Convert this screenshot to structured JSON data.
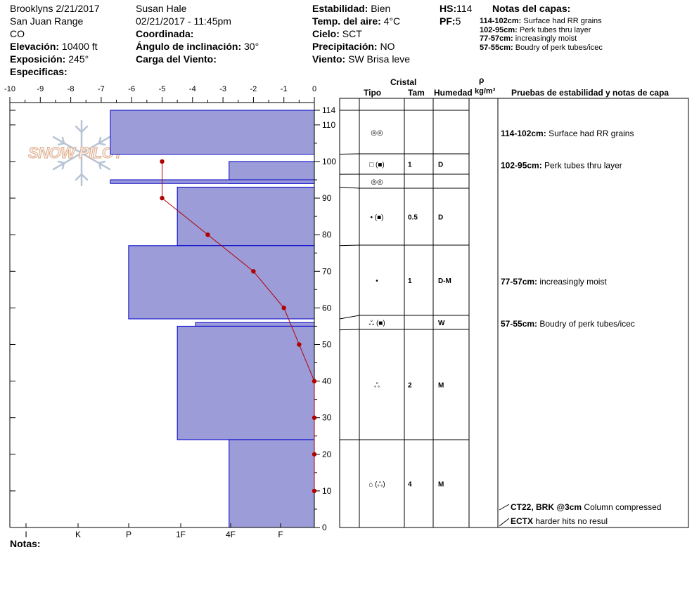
{
  "header": {
    "site_date": "Brooklyns 2/21/2017",
    "range": "San Juan Range",
    "state": "CO",
    "elevation_label": "Elevación:",
    "elevation_value": "10400 ft",
    "aspect_label": "Exposición:",
    "aspect_value": "245°",
    "specifics_label": "Especificas:",
    "observer": "Susan Hale",
    "datetime": "02/21/2017 - 11:45pm",
    "coord_label": "Coordinada:",
    "coord_value": "",
    "slope_label": "Ángulo de inclinación:",
    "slope_value": "30°",
    "windload_label": "Carga del Viento:",
    "windload_value": "",
    "stability_label": "Estabilidad:",
    "stability_value": "Bien",
    "airtemp_label": "Temp. del aire:",
    "airtemp_value": "4°C",
    "sky_label": "Cielo:",
    "sky_value": "SCT",
    "precip_label": "Precipitación:",
    "precip_value": "NO",
    "wind_label": "Viento:",
    "wind_value": "SW Brisa leve",
    "hs_label": "HS:",
    "hs_value": "114",
    "pf_label": "PF:",
    "pf_value": "5",
    "notes_title": "Notas del capas:",
    "layer_notes": [
      {
        "range": "114-102cm:",
        "text": "Surface had RR grains"
      },
      {
        "range": "102-95cm:",
        "text": "Perk tubes thru layer"
      },
      {
        "range": "77-57cm:",
        "text": "increasingly moist"
      },
      {
        "range": "57-55cm:",
        "text": "Boudry of perk tubes/icec"
      }
    ]
  },
  "watermark": "SNOW PILOT",
  "footer_notes_label": "Notas:",
  "table": {
    "headers": {
      "crystal": "Cristal",
      "type": "Tipo",
      "size": "Tam",
      "humidity": "Humedad",
      "rho": "ρ",
      "density_unit": "kg/m³",
      "tests": "Pruebas de estabilidad y notas de capa"
    },
    "rows": [
      {
        "top": 114,
        "bottom": 102,
        "type": "◎◎",
        "size": "",
        "humidity": "",
        "note_range": "114-102cm:",
        "note_text": "Surface had RR grains"
      },
      {
        "top": 102,
        "bottom": 96.5,
        "type": "□ (■)",
        "size": "1",
        "humidity": "D",
        "note_range": "102-95cm:",
        "note_text": "Perk tubes thru layer"
      },
      {
        "top": 96.5,
        "bottom": 93,
        "type": "◎◎",
        "size": "",
        "humidity": "",
        "note_range": "",
        "note_text": ""
      },
      {
        "top": 93,
        "bottom": 77,
        "type": "• (■)",
        "size": "0.5",
        "humidity": "D",
        "note_range": "",
        "note_text": ""
      },
      {
        "top": 77,
        "bottom": 57,
        "type": "•",
        "size": "1",
        "humidity": "D-M",
        "note_range": "77-57cm:",
        "note_text": "increasingly moist"
      },
      {
        "top": 57,
        "bottom": 54,
        "type": "ஃ (■)",
        "size": "",
        "humidity": "W",
        "note_range": "57-55cm:",
        "note_text": "Boudry of perk tubes/icec"
      },
      {
        "top": 54,
        "bottom": 24,
        "type": "ஃ",
        "size": "2",
        "humidity": "M",
        "note_range": "",
        "note_text": ""
      },
      {
        "top": 24,
        "bottom": 0,
        "type": "⌂ (ஃ)",
        "size": "4",
        "humidity": "M",
        "note_range": "",
        "note_text": ""
      }
    ],
    "tests": [
      {
        "code": "CT22, BRK @3cm",
        "text": "Column compressed"
      },
      {
        "code": "ECTX",
        "text": "harder hits no resul"
      }
    ]
  },
  "chart_data": {
    "type": "snow-profile",
    "temperature_axis": {
      "ticks": [
        -10,
        -9,
        -8,
        -7,
        -6,
        -5,
        -4,
        -3,
        -2,
        -1,
        0
      ],
      "min": -10,
      "max": 0
    },
    "height_axis": {
      "ticks": [
        0,
        10,
        20,
        30,
        40,
        50,
        60,
        70,
        80,
        90,
        100,
        110,
        114
      ],
      "min": 0,
      "max": 114
    },
    "hardness_axis": {
      "ticks": [
        "I",
        "K",
        "P",
        "1F",
        "4F",
        "F"
      ]
    },
    "hardness_layers": [
      {
        "top": 114,
        "bottom": 102,
        "hardness_value": -6.7
      },
      {
        "top": 100,
        "bottom": 94,
        "hardness_value": -2.8
      },
      {
        "top": 95,
        "bottom": 94,
        "hardness_value": -6.7
      },
      {
        "top": 93,
        "bottom": 77,
        "hardness_value": -4.5
      },
      {
        "top": 77,
        "bottom": 57,
        "hardness_value": -6.1
      },
      {
        "top": 56,
        "bottom": 55,
        "hardness_value": -3.9
      },
      {
        "top": 55,
        "bottom": 24,
        "hardness_value": -4.5
      },
      {
        "top": 24,
        "bottom": 0,
        "hardness_value": -2.8
      }
    ],
    "temperature_profile": [
      {
        "height": 100,
        "temp": -5
      },
      {
        "height": 90,
        "temp": -5
      },
      {
        "height": 80,
        "temp": -3.5
      },
      {
        "height": 70,
        "temp": -2
      },
      {
        "height": 60,
        "temp": -1
      },
      {
        "height": 50,
        "temp": -0.5
      },
      {
        "height": 40,
        "temp": 0
      },
      {
        "height": 30,
        "temp": 0
      },
      {
        "height": 20,
        "temp": 0
      },
      {
        "height": 10,
        "temp": 0
      }
    ],
    "colors": {
      "fill": "#9c9cd8",
      "edge": "#0000cc",
      "temp": "#b00000"
    }
  }
}
